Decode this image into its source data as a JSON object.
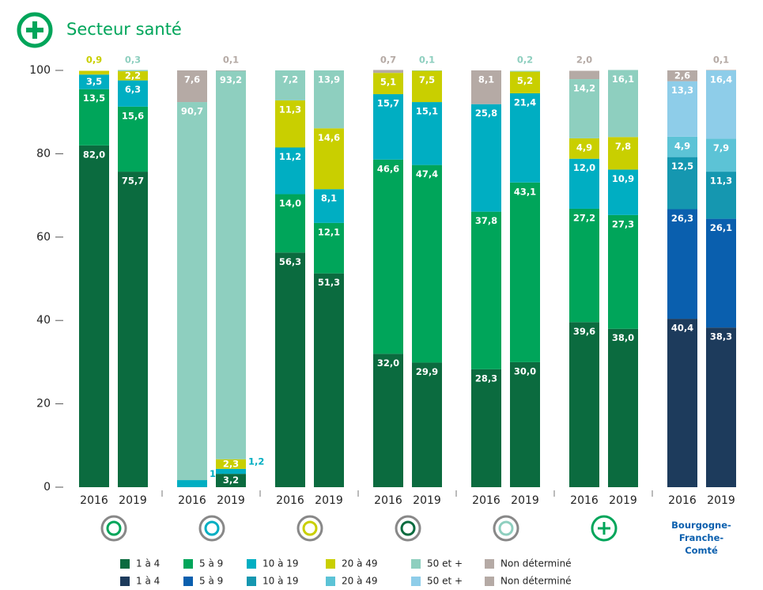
{
  "chart_data": {
    "type": "stacked_bar",
    "title": "Secteur santé",
    "categories": [
      "2016",
      "2019",
      "2016",
      "2019",
      "2016",
      "2019",
      "2016",
      "2019",
      "2016",
      "2019",
      "2016",
      "2019"
    ],
    "ylim": [
      0,
      100
    ],
    "yticks": [
      0,
      20,
      40,
      60,
      80,
      100
    ],
    "series": [
      {
        "name": "1 à 4",
        "color": "#0b6b3f",
        "values": [
          82.0,
          75.7,
          null,
          3.2,
          56.3,
          51.3,
          32.0,
          29.9,
          28.3,
          30.0,
          39.6,
          38.0
        ],
        "value_labels": [
          "82,0",
          "75,7",
          null,
          "3,2",
          "56,3",
          "51,3",
          "32,0",
          "29,9",
          "28,3",
          "30,0",
          "39,6",
          "38,0"
        ]
      },
      {
        "name": "5 à 9",
        "color": "#00a55a",
        "values": [
          13.5,
          15.6,
          null,
          null,
          14.0,
          12.1,
          46.6,
          47.4,
          37.8,
          43.1,
          27.2,
          27.3
        ],
        "value_labels": [
          "13,5",
          "15,6",
          null,
          null,
          "14,0",
          "12,1",
          "46,6",
          "47,4",
          "37,8",
          "43,1",
          "27,2",
          "27,3"
        ]
      },
      {
        "name": "10 à 19",
        "color": "#00aec2",
        "values": [
          3.5,
          6.3,
          1.7,
          1.2,
          11.2,
          8.1,
          15.7,
          15.1,
          25.8,
          21.4,
          12.0,
          10.9
        ],
        "value_labels": [
          "3,5",
          "6,3",
          "1,7",
          "1,2",
          "11,2",
          "8,1",
          "15,7",
          "15,1",
          "25,8",
          "21,4",
          "12,0",
          "10,9"
        ]
      },
      {
        "name": "20 à 49",
        "color": "#c9cf00",
        "values": [
          0.9,
          2.2,
          null,
          2.3,
          11.3,
          14.6,
          5.1,
          7.5,
          null,
          5.2,
          4.9,
          7.8
        ],
        "value_labels": [
          "0,9",
          "2,2",
          null,
          "2,3",
          "11,3",
          "14,6",
          "5,1",
          "7,5",
          null,
          "5,2",
          "4,9",
          "7,8"
        ]
      },
      {
        "name": "50 et +",
        "color": "#8ecfbf",
        "values": [
          null,
          0.3,
          90.7,
          93.2,
          7.2,
          13.9,
          null,
          0.1,
          null,
          0.2,
          14.2,
          16.1
        ],
        "value_labels": [
          null,
          "0,3",
          "90,7",
          "93,2",
          "7,2",
          "13,9",
          null,
          "0,1",
          null,
          "0,2",
          "14,2",
          "16,1"
        ]
      },
      {
        "name": "Non déterminé",
        "color": "#b5aaa5",
        "values": [
          null,
          null,
          7.6,
          0.1,
          null,
          null,
          0.7,
          null,
          8.1,
          null,
          2.0,
          null
        ],
        "value_labels": [
          null,
          null,
          "7,6",
          "0,1",
          null,
          null,
          "0,7",
          null,
          "8,1",
          null,
          "2,0",
          null
        ]
      }
    ],
    "region": {
      "label": "Bourgogne-Franche-Comté",
      "categories": [
        "2016",
        "2019"
      ],
      "series": [
        {
          "name": "1 à 4",
          "color": "#1d3b5c",
          "values": [
            40.4,
            38.3
          ],
          "value_labels": [
            "40,4",
            "38,3"
          ]
        },
        {
          "name": "5 à 9",
          "color": "#0a5fae",
          "values": [
            26.3,
            26.1
          ],
          "value_labels": [
            "26,3",
            "26,1"
          ]
        },
        {
          "name": "10 à 19",
          "color": "#1597b0",
          "values": [
            12.5,
            11.3
          ],
          "value_labels": [
            "12,5",
            "11,3"
          ]
        },
        {
          "name": "20 à 49",
          "color": "#5cc3d6",
          "values": [
            4.9,
            7.9
          ],
          "value_labels": [
            "4,9",
            "7,9"
          ]
        },
        {
          "name": "50 et +",
          "color": "#8ecde9",
          "values": [
            13.3,
            16.4
          ],
          "value_labels": [
            "13,3",
            "16,4"
          ]
        },
        {
          "name": "Non déterminé",
          "color": "#b5aaa5",
          "values": [
            2.6,
            0.1
          ],
          "value_labels": [
            "2,6",
            "0,1"
          ]
        }
      ]
    }
  }
}
